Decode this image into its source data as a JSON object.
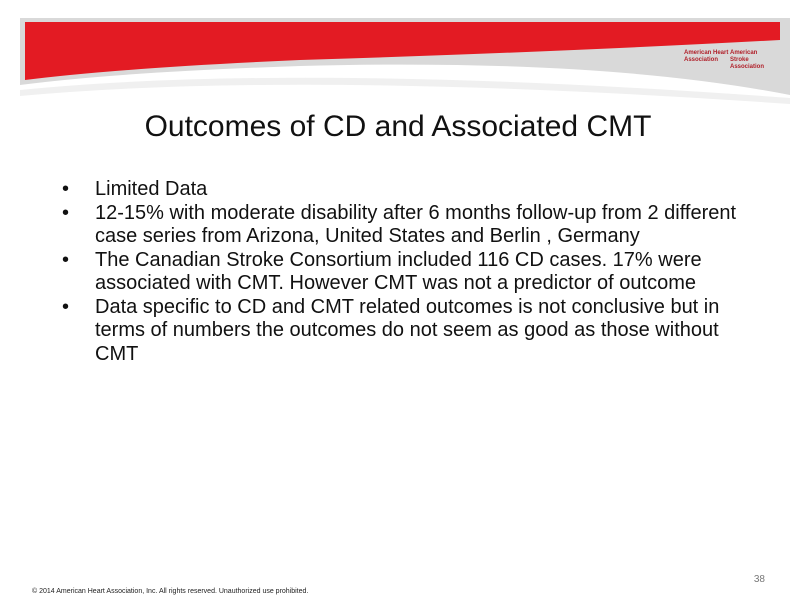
{
  "logo": {
    "heart": "American Heart Association",
    "stroke": "American Stroke Association"
  },
  "title": "Outcomes of CD and Associated CMT",
  "bullets": [
    "Limited Data",
    "12-15% with moderate disability after 6 months follow-up from 2 different case series from Arizona, United States and Berlin , Germany",
    "The Canadian Stroke Consortium included 116 CD cases. 17% were associated with CMT. However CMT was not a predictor of outcome",
    "Data specific to CD and CMT related outcomes is not conclusive but in terms of numbers the outcomes do not seem as good as those without CMT"
  ],
  "page_number": "38",
  "footer": "© 2014 American Heart Association, Inc. All rights reserved. Unauthorized use prohibited."
}
